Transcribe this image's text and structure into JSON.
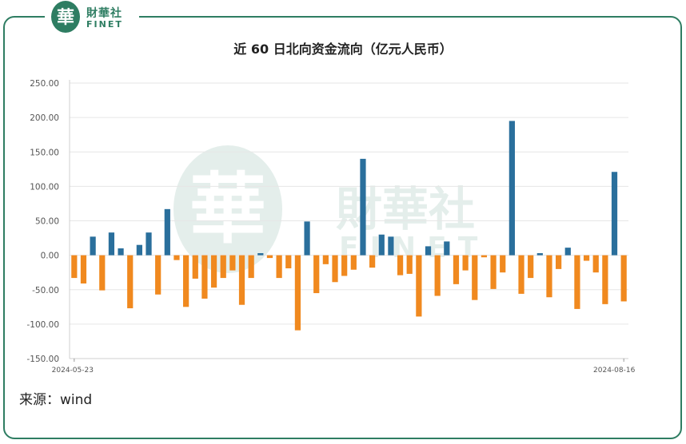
{
  "brand": {
    "name_cn": "財華社",
    "name_en": "FINET",
    "seal_char": "華"
  },
  "watermark": {
    "char": "華",
    "name_cn": "財華社",
    "name_en": "FINET"
  },
  "source": "来源：wind",
  "colors": {
    "positive": "#2a6f9c",
    "negative": "#f0891f",
    "frame": "#2e7d62"
  },
  "chart_data": {
    "type": "bar",
    "title": "近 60 日北向资金流向（亿元人民币）",
    "xlabel": "",
    "ylabel": "",
    "ylim": [
      -150,
      250
    ],
    "yticks": [
      "250.00",
      "200.00",
      "150.00",
      "100.00",
      "50.00",
      "0.00",
      "-50.00",
      "-100.00",
      "-150.00"
    ],
    "x_tick_labels": [
      "2024-05-23",
      "2024-08-16"
    ],
    "grid": true,
    "values": [
      -33,
      -41,
      27,
      -51,
      33,
      10,
      -77,
      15,
      33,
      -57,
      67,
      -7,
      -75,
      -34,
      -63,
      -47,
      -33,
      -22,
      -72,
      -33,
      3,
      -4,
      -33,
      -19,
      -109,
      49,
      -55,
      -13,
      -39,
      -30,
      -21,
      140,
      -18,
      30,
      27,
      -29,
      -27,
      -89,
      13,
      -59,
      20,
      -42,
      -22,
      -65,
      -3,
      -49,
      -25,
      195,
      -56,
      -33,
      3,
      -61,
      -20,
      11,
      -78,
      -8,
      -25,
      -71,
      121,
      -67
    ]
  }
}
